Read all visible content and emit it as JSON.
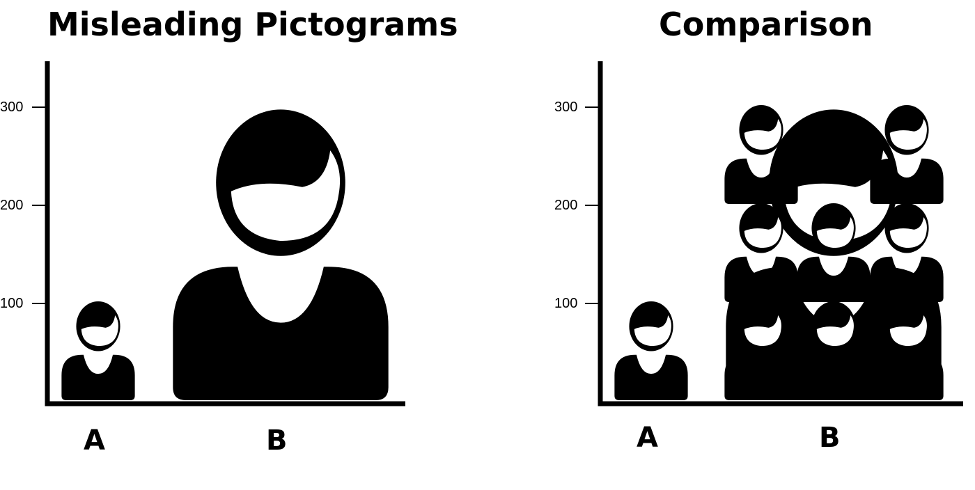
{
  "chart_data": [
    {
      "type": "pictogram",
      "title": "Misleading Pictograms",
      "categories": [
        "A",
        "B"
      ],
      "values": [
        100,
        300
      ],
      "yticks": [
        100,
        200,
        300
      ],
      "ylim": [
        0,
        345
      ],
      "note": "B's single icon is scaled in both width and height"
    },
    {
      "type": "pictogram",
      "title": "Comparison",
      "categories": [
        "A",
        "B"
      ],
      "values": [
        100,
        300
      ],
      "yticks": [
        100,
        200,
        300
      ],
      "ylim": [
        0,
        345
      ],
      "note": "B shown as repeated unit icons"
    }
  ],
  "colors": {
    "ink": "#000000",
    "background": "#ffffff"
  },
  "icons": {
    "person": "person-icon"
  }
}
